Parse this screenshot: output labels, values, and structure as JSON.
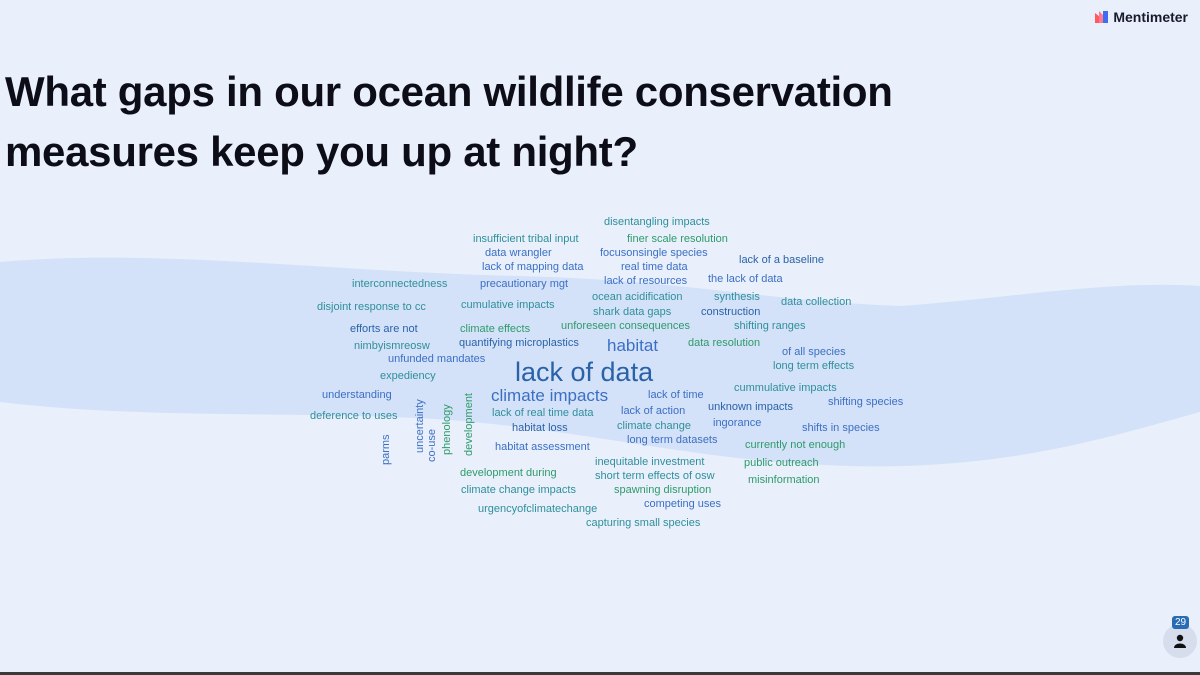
{
  "brand": {
    "name": "Mentimeter",
    "logo_colors": [
      "#ff5a5f",
      "#3d6df2"
    ]
  },
  "question": {
    "line1": "What gaps in our ocean wildlife conservation",
    "line2": "measures keep you up at night?"
  },
  "colors": {
    "background": "#e9f0fc",
    "wave": "#d4e2f9",
    "teal": "#2f8f9a",
    "blue": "#3b6fc4",
    "green": "#2e9a6a",
    "dark_blue": "#2a62a8"
  },
  "audience": {
    "count": "29",
    "icon": "person-icon"
  },
  "words": [
    {
      "text": "disentangling impacts",
      "c": "teal"
    },
    {
      "text": "insufficient tribal input",
      "c": "teal"
    },
    {
      "text": "finer scale resolution",
      "c": "green"
    },
    {
      "text": "data wrangler",
      "c": "blue"
    },
    {
      "text": "focusonsingle species",
      "c": "blue"
    },
    {
      "text": "lack of a baseline",
      "c": "dark_blue"
    },
    {
      "text": "lack of mapping data",
      "c": "blue"
    },
    {
      "text": "real time data",
      "c": "blue"
    },
    {
      "text": "the lack of data",
      "c": "blue"
    },
    {
      "text": "interconnectedness",
      "c": "teal"
    },
    {
      "text": "precautionary mgt",
      "c": "blue"
    },
    {
      "text": "lack of resources",
      "c": "blue"
    },
    {
      "text": "ocean acidification",
      "c": "teal"
    },
    {
      "text": "synthesis",
      "c": "teal"
    },
    {
      "text": "data collection",
      "c": "teal"
    },
    {
      "text": "disjoint response to cc",
      "c": "teal"
    },
    {
      "text": "cumulative impacts",
      "c": "teal"
    },
    {
      "text": "shark data gaps",
      "c": "teal"
    },
    {
      "text": "construction",
      "c": "dark_blue"
    },
    {
      "text": "efforts are not",
      "c": "dark_blue"
    },
    {
      "text": "climate effects",
      "c": "green"
    },
    {
      "text": "unforeseen consequences",
      "c": "green"
    },
    {
      "text": "shifting ranges",
      "c": "teal"
    },
    {
      "text": "nimbyismreosw",
      "c": "teal"
    },
    {
      "text": "quantifying microplastics",
      "c": "dark_blue"
    },
    {
      "text": "habitat",
      "c": "blue"
    },
    {
      "text": "data resolution",
      "c": "green"
    },
    {
      "text": "of all species",
      "c": "blue"
    },
    {
      "text": "unfunded mandates",
      "c": "blue"
    },
    {
      "text": "lack of data",
      "c": "dark_blue"
    },
    {
      "text": "long term effects",
      "c": "teal"
    },
    {
      "text": "expediency",
      "c": "teal"
    },
    {
      "text": "cummulative impacts",
      "c": "teal"
    },
    {
      "text": "understanding",
      "c": "blue"
    },
    {
      "text": "climate impacts",
      "c": "blue"
    },
    {
      "text": "lack of time",
      "c": "blue"
    },
    {
      "text": "unknown impacts",
      "c": "dark_blue"
    },
    {
      "text": "shifting species",
      "c": "blue"
    },
    {
      "text": "deference to uses",
      "c": "teal"
    },
    {
      "text": "lack of real time data",
      "c": "teal"
    },
    {
      "text": "lack of action",
      "c": "blue"
    },
    {
      "text": "habitat loss",
      "c": "dark_blue"
    },
    {
      "text": "climate change",
      "c": "teal"
    },
    {
      "text": "ingorance",
      "c": "blue"
    },
    {
      "text": "shifts in species",
      "c": "blue"
    },
    {
      "text": "long term datasets",
      "c": "blue"
    },
    {
      "text": "habitat assessment",
      "c": "blue"
    },
    {
      "text": "currently not enough",
      "c": "green"
    },
    {
      "text": "inequitable investment",
      "c": "teal"
    },
    {
      "text": "public outreach",
      "c": "green"
    },
    {
      "text": "development during",
      "c": "green"
    },
    {
      "text": "short term effects of osw",
      "c": "teal"
    },
    {
      "text": "misinformation",
      "c": "green"
    },
    {
      "text": "climate change impacts",
      "c": "teal"
    },
    {
      "text": "spawning disruption",
      "c": "green"
    },
    {
      "text": "competing uses",
      "c": "blue"
    },
    {
      "text": "urgencyofclimatechange",
      "c": "teal"
    },
    {
      "text": "capturing small species",
      "c": "teal"
    },
    {
      "text": "parms",
      "c": "blue"
    },
    {
      "text": "uncertainty",
      "c": "blue"
    },
    {
      "text": "co-use",
      "c": "blue"
    },
    {
      "text": "phenology",
      "c": "green"
    },
    {
      "text": "development",
      "c": "green"
    }
  ]
}
